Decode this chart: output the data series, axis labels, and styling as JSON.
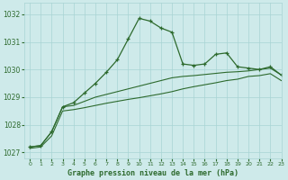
{
  "title": "Graphe pression niveau de la mer (hPa)",
  "bg_color": "#ceeaea",
  "grid_color": "#a8d4d4",
  "line_color": "#2d6a2d",
  "xlim": [
    -0.5,
    23
  ],
  "ylim": [
    1026.8,
    1032.4
  ],
  "yticks": [
    1027,
    1028,
    1029,
    1030,
    1031,
    1032
  ],
  "xticks": [
    0,
    1,
    2,
    3,
    4,
    5,
    6,
    7,
    8,
    9,
    10,
    11,
    12,
    13,
    14,
    15,
    16,
    17,
    18,
    19,
    20,
    21,
    22,
    23
  ],
  "s1_x": [
    0,
    1,
    2,
    3,
    4,
    5,
    6,
    7,
    8,
    9,
    10,
    11,
    12,
    13,
    14,
    15,
    16,
    17,
    18,
    19,
    20,
    21,
    22,
    23
  ],
  "s1_y": [
    1027.2,
    1027.25,
    1027.75,
    1028.65,
    1028.8,
    1029.15,
    1029.5,
    1029.9,
    1030.35,
    1031.1,
    1031.85,
    1031.75,
    1031.5,
    1031.35,
    1030.2,
    1030.15,
    1030.2,
    1030.55,
    1030.6,
    1030.1,
    1030.05,
    1030.0,
    1030.1,
    1029.8
  ],
  "s2_x": [
    0,
    1,
    2,
    3,
    4,
    5,
    6,
    7,
    8,
    9,
    10,
    11,
    12,
    13,
    14,
    15,
    16,
    17,
    18,
    19,
    20,
    21,
    22,
    23
  ],
  "s2_y": [
    1027.2,
    1027.25,
    1027.75,
    1028.65,
    1028.7,
    1028.85,
    1029.0,
    1029.1,
    1029.2,
    1029.3,
    1029.4,
    1029.5,
    1029.6,
    1029.7,
    1029.75,
    1029.78,
    1029.82,
    1029.86,
    1029.9,
    1029.92,
    1029.95,
    1030.0,
    1030.05,
    1029.8
  ],
  "s3_x": [
    0,
    1,
    2,
    3,
    4,
    5,
    6,
    7,
    8,
    9,
    10,
    11,
    12,
    13,
    14,
    15,
    16,
    17,
    18,
    19,
    20,
    21,
    22,
    23
  ],
  "s3_y": [
    1027.15,
    1027.2,
    1027.6,
    1028.5,
    1028.55,
    1028.62,
    1028.7,
    1028.78,
    1028.85,
    1028.92,
    1028.98,
    1029.05,
    1029.12,
    1029.2,
    1029.3,
    1029.38,
    1029.45,
    1029.52,
    1029.6,
    1029.65,
    1029.75,
    1029.78,
    1029.85,
    1029.6
  ]
}
